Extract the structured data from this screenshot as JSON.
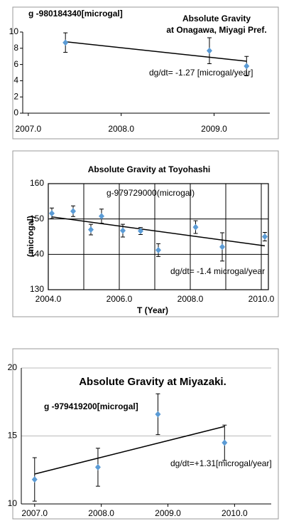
{
  "chart_data": [
    {
      "type": "scatter",
      "title": [
        "Absolute Gravity",
        "at Onagawa, Miyagi Pref."
      ],
      "annotations": [
        "g -980184340[microgal]",
        "dg/dt= -1.27 [microgal/year]"
      ],
      "x": [
        2007.4,
        2008.95,
        2009.35
      ],
      "values": [
        8.7,
        7.7,
        5.8
      ],
      "errors": [
        1.2,
        1.6,
        1.2
      ],
      "trend": {
        "x": [
          2007.4,
          2009.35
        ],
        "y": [
          8.8,
          6.4
        ]
      },
      "color": "#5b9bd5",
      "xlim": [
        2006.94,
        2009.6
      ],
      "ylim": [
        0,
        10
      ],
      "xticks": [
        {
          "value": 2007,
          "label": "2007.0"
        },
        {
          "value": 2008,
          "label": "2008.0"
        },
        {
          "value": 2009,
          "label": "2009.0"
        }
      ],
      "yticks": [
        0,
        2,
        4,
        6,
        8,
        10
      ],
      "grid": false
    },
    {
      "type": "scatter",
      "title": [
        "Absolute Gravity at Toyohashi"
      ],
      "annotations": [
        "g-979729000(microgal)",
        "dg/dt= -1.4 microgal/year"
      ],
      "xlabel": "T (Year)",
      "ylabel": "(microgal)",
      "x": [
        2004.1,
        2004.7,
        2005.2,
        2005.5,
        2006.1,
        2006.6,
        2007.1,
        2008.15,
        2008.9,
        2010.1
      ],
      "values": [
        151.6,
        152.2,
        147,
        150.8,
        146.7,
        146.6,
        141.2,
        147.7,
        142.1,
        145
      ],
      "errors": [
        1.5,
        1.5,
        1.5,
        2,
        1.8,
        1,
        1.8,
        1.8,
        4,
        1.2
      ],
      "trend": {
        "x": [
          2004.1,
          2010.1
        ],
        "y": [
          150.6,
          142.4
        ]
      },
      "color": "#5b9bd5",
      "xlim": [
        2004,
        2010.2
      ],
      "ylim": [
        130,
        160
      ],
      "xticks": [
        {
          "value": 2004,
          "label": "2004.0"
        },
        {
          "value": 2006,
          "label": "2006.0"
        },
        {
          "value": 2008,
          "label": "2008.0"
        },
        {
          "value": 2010,
          "label": "2010.0"
        }
      ],
      "xminor": [
        2005,
        2007,
        2009
      ],
      "yticks": [
        130,
        140,
        150,
        160
      ],
      "grid": true
    },
    {
      "type": "scatter",
      "title": [
        "Absolute Gravity at Miyazaki."
      ],
      "annotations": [
        "g -979419200[microgal]",
        "dg/dt=+1.31[microgal/year]"
      ],
      "x": [
        2007.0,
        2007.95,
        2008.85,
        2009.85
      ],
      "values": [
        11.8,
        12.7,
        16.6,
        14.5
      ],
      "errors": [
        1.6,
        1.4,
        1.5,
        1.3
      ],
      "trend": {
        "x": [
          2007.0,
          2009.85
        ],
        "y": [
          12.2,
          15.7
        ]
      },
      "color": "#5b9bd5",
      "xlim": [
        2006.8,
        2010.55
      ],
      "ylim": [
        10,
        20
      ],
      "xticks": [
        {
          "value": 2007,
          "label": "2007.0"
        },
        {
          "value": 2008,
          "label": "2008.0"
        },
        {
          "value": 2009,
          "label": "2009.0"
        },
        {
          "value": 2010,
          "label": "2010.0"
        }
      ],
      "yticks": [
        10,
        15,
        20
      ],
      "grid": true
    }
  ]
}
